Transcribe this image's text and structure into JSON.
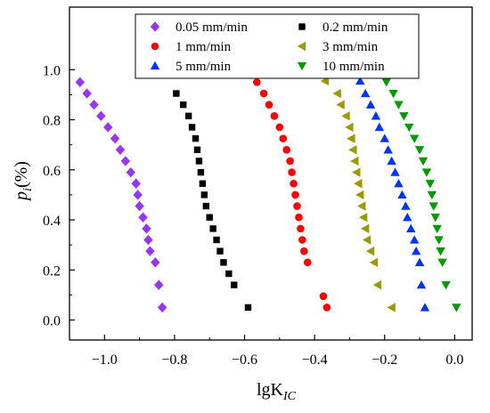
{
  "chart_data": {
    "type": "scatter",
    "xlabel": {
      "main": "lgK",
      "sub": "IC"
    },
    "ylabel": {
      "main": "p",
      "sub": "i",
      "suffix": "(%)"
    },
    "xlim": [
      -1.1,
      0.05
    ],
    "ylim": [
      -0.08,
      1.25
    ],
    "x_ticks": [
      -1.0,
      -0.8,
      -0.6,
      -0.4,
      -0.2,
      0.0
    ],
    "x_tick_labels": [
      "−1.0",
      "−0.8",
      "−0.6",
      "−0.4",
      "−0.2",
      "0.0"
    ],
    "y_ticks": [
      0.0,
      0.2,
      0.4,
      0.6,
      0.8,
      1.0
    ],
    "y_tick_labels": [
      "0.0",
      "0.2",
      "0.4",
      "0.6",
      "0.8",
      "1.0"
    ],
    "grid": false,
    "legend_position": "top",
    "series": [
      {
        "name": "0.05 mm/min",
        "marker": "diamond",
        "color": "#9933ff",
        "x": [
          -1.07,
          -1.05,
          -1.03,
          -1.01,
          -0.99,
          -0.97,
          -0.955,
          -0.94,
          -0.925,
          -0.91,
          -0.905,
          -0.9,
          -0.89,
          -0.88,
          -0.875,
          -0.87,
          -0.855,
          -0.845,
          -0.835
        ],
        "y": [
          0.95,
          0.905,
          0.86,
          0.815,
          0.77,
          0.725,
          0.68,
          0.635,
          0.59,
          0.545,
          0.5,
          0.455,
          0.41,
          0.365,
          0.32,
          0.275,
          0.23,
          0.14,
          0.05
        ]
      },
      {
        "name": "0.2 mm/min",
        "marker": "square",
        "color": "#000000",
        "x": [
          -0.795,
          -0.775,
          -0.76,
          -0.75,
          -0.74,
          -0.735,
          -0.73,
          -0.725,
          -0.72,
          -0.715,
          -0.71,
          -0.7,
          -0.69,
          -0.68,
          -0.67,
          -0.66,
          -0.645,
          -0.63,
          -0.59
        ],
        "y": [
          0.905,
          0.86,
          0.815,
          0.77,
          0.725,
          0.68,
          0.635,
          0.59,
          0.545,
          0.5,
          0.455,
          0.41,
          0.365,
          0.32,
          0.275,
          0.23,
          0.185,
          0.14,
          0.05
        ]
      },
      {
        "name": "1 mm/min",
        "marker": "circle",
        "color": "#ff0000",
        "x": [
          -0.565,
          -0.545,
          -0.53,
          -0.515,
          -0.5,
          -0.49,
          -0.48,
          -0.47,
          -0.465,
          -0.46,
          -0.455,
          -0.45,
          -0.445,
          -0.44,
          -0.435,
          -0.43,
          -0.42,
          -0.375,
          -0.365
        ],
        "y": [
          0.95,
          0.905,
          0.86,
          0.815,
          0.77,
          0.725,
          0.68,
          0.635,
          0.59,
          0.545,
          0.5,
          0.455,
          0.41,
          0.365,
          0.32,
          0.275,
          0.23,
          0.095,
          0.05
        ]
      },
      {
        "name": "3 mm/min",
        "marker": "triangle-left",
        "color": "#999900",
        "x": [
          -0.37,
          -0.335,
          -0.325,
          -0.31,
          -0.3,
          -0.295,
          -0.29,
          -0.285,
          -0.28,
          -0.275,
          -0.27,
          -0.265,
          -0.26,
          -0.255,
          -0.25,
          -0.24,
          -0.23,
          -0.22,
          -0.18
        ],
        "y": [
          0.955,
          0.905,
          0.86,
          0.815,
          0.77,
          0.725,
          0.68,
          0.635,
          0.59,
          0.545,
          0.5,
          0.455,
          0.41,
          0.365,
          0.32,
          0.275,
          0.23,
          0.14,
          0.05
        ]
      },
      {
        "name": "5 mm/min",
        "marker": "triangle-up",
        "color": "#0033ff",
        "x": [
          -0.27,
          -0.255,
          -0.24,
          -0.225,
          -0.215,
          -0.2,
          -0.19,
          -0.18,
          -0.17,
          -0.16,
          -0.15,
          -0.14,
          -0.135,
          -0.125,
          -0.115,
          -0.11,
          -0.1,
          -0.095,
          -0.085
        ],
        "y": [
          0.955,
          0.905,
          0.86,
          0.815,
          0.77,
          0.725,
          0.68,
          0.635,
          0.59,
          0.545,
          0.5,
          0.455,
          0.41,
          0.365,
          0.32,
          0.275,
          0.23,
          0.14,
          0.05
        ]
      },
      {
        "name": "10 mm/min",
        "marker": "triangle-down",
        "color": "#009900",
        "x": [
          -0.195,
          -0.175,
          -0.16,
          -0.145,
          -0.13,
          -0.115,
          -0.1,
          -0.09,
          -0.08,
          -0.07,
          -0.065,
          -0.06,
          -0.055,
          -0.05,
          -0.045,
          -0.04,
          -0.035,
          -0.025,
          0.005
        ],
        "y": [
          0.95,
          0.905,
          0.86,
          0.815,
          0.77,
          0.725,
          0.68,
          0.635,
          0.59,
          0.545,
          0.5,
          0.455,
          0.41,
          0.365,
          0.32,
          0.275,
          0.23,
          0.14,
          0.05
        ]
      }
    ]
  }
}
